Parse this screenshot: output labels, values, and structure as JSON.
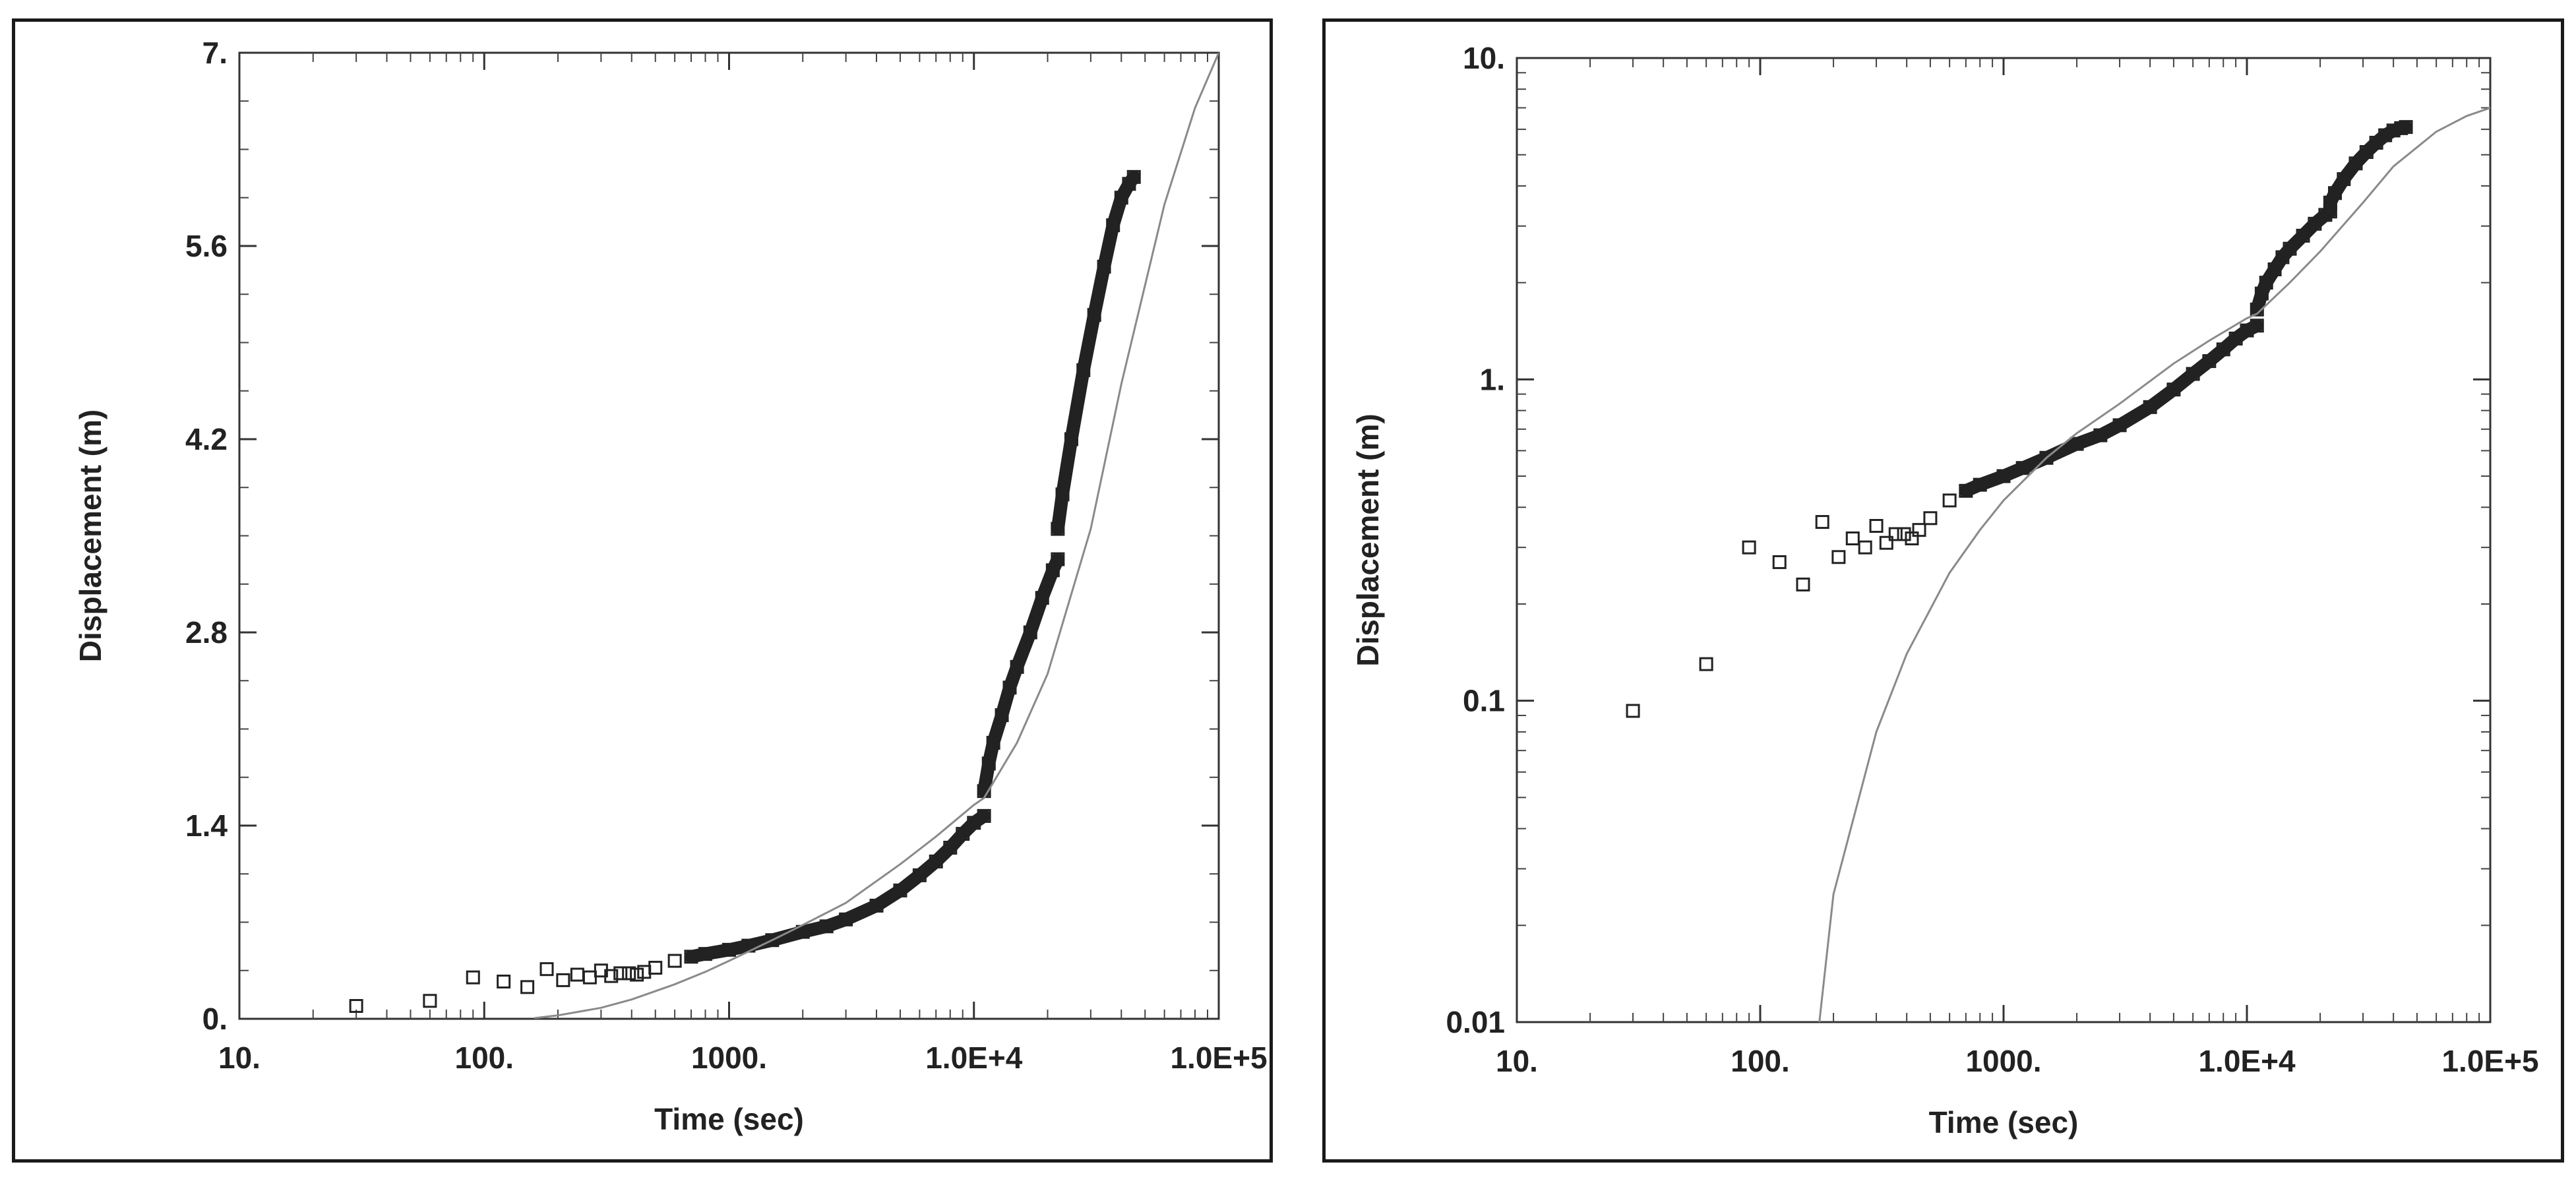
{
  "chart_data": [
    {
      "type": "scatter",
      "xlabel": "Time (sec)",
      "ylabel": "Displacement (m)",
      "xscale": "log",
      "yscale": "linear",
      "xlim": [
        10,
        100000
      ],
      "ylim": [
        0,
        7
      ],
      "xticks": [
        10,
        100,
        1000,
        10000,
        100000
      ],
      "xtick_labels": [
        "10.",
        "100.",
        "1000.",
        "1.0E+4",
        "1.0E+5"
      ],
      "yticks": [
        0,
        1.4,
        2.8,
        4.2,
        5.6,
        7
      ],
      "ytick_labels": [
        "0.",
        "1.4",
        "2.8",
        "4.2",
        "5.6",
        "7."
      ],
      "grid": false,
      "marker_color": "#222222",
      "series": [
        {
          "style": "markers",
          "x": [
            30,
            60,
            90,
            120,
            150,
            180,
            210,
            240,
            270,
            300,
            330,
            360,
            390,
            420,
            450,
            500,
            600,
            700,
            800,
            1000,
            1200,
            1500,
            2000,
            2500,
            3000,
            4000,
            5000,
            6000,
            7000,
            8000,
            9000,
            10000,
            11000,
            11000,
            11500,
            12000,
            13000,
            14000,
            15000,
            17000,
            19000,
            21000,
            22000,
            22000,
            23000,
            25000,
            28000,
            31000,
            34000,
            37000,
            40000,
            43000,
            45000
          ],
          "y": [
            0.093,
            0.13,
            0.3,
            0.27,
            0.23,
            0.36,
            0.28,
            0.32,
            0.3,
            0.35,
            0.31,
            0.33,
            0.33,
            0.32,
            0.34,
            0.37,
            0.42,
            0.45,
            0.47,
            0.5,
            0.53,
            0.57,
            0.63,
            0.67,
            0.72,
            0.82,
            0.93,
            1.04,
            1.14,
            1.24,
            1.34,
            1.42,
            1.47,
            1.65,
            1.85,
            2.0,
            2.2,
            2.4,
            2.55,
            2.8,
            3.05,
            3.25,
            3.33,
            3.55,
            3.8,
            4.2,
            4.7,
            5.1,
            5.45,
            5.75,
            5.95,
            6.05,
            6.1
          ]
        },
        {
          "style": "line",
          "color": "#8a8a8a",
          "x": [
            160,
            200,
            300,
            400,
            600,
            800,
            1000,
            1500,
            2000,
            3000,
            5000,
            7000,
            10000,
            11000,
            15000,
            20000,
            30000,
            40000,
            60000,
            80000,
            100000
          ],
          "y": [
            0.005,
            0.025,
            0.08,
            0.14,
            0.25,
            0.34,
            0.42,
            0.57,
            0.68,
            0.84,
            1.12,
            1.32,
            1.55,
            1.6,
            2.0,
            2.5,
            3.55,
            4.6,
            5.9,
            6.6,
            7.0
          ]
        }
      ]
    },
    {
      "type": "scatter",
      "xlabel": "Time (sec)",
      "ylabel": "Displacement (m)",
      "xscale": "log",
      "yscale": "log",
      "xlim": [
        10,
        100000
      ],
      "ylim": [
        0.01,
        10
      ],
      "xticks": [
        10,
        100,
        1000,
        10000,
        100000
      ],
      "xtick_labels": [
        "10.",
        "100.",
        "1000.",
        "1.0E+4",
        "1.0E+5"
      ],
      "yticks": [
        0.01,
        0.1,
        1,
        10
      ],
      "ytick_labels": [
        "0.01",
        "0.1",
        "1.",
        "10."
      ],
      "grid": false,
      "marker_color": "#222222",
      "series": [
        {
          "style": "markers",
          "x": [
            30,
            60,
            90,
            120,
            150,
            180,
            210,
            240,
            270,
            300,
            330,
            360,
            390,
            420,
            450,
            500,
            600,
            700,
            800,
            1000,
            1200,
            1500,
            2000,
            2500,
            3000,
            4000,
            5000,
            6000,
            7000,
            8000,
            9000,
            10000,
            11000,
            11000,
            11500,
            12000,
            13000,
            14000,
            15000,
            17000,
            19000,
            21000,
            22000,
            22000,
            23000,
            25000,
            28000,
            31000,
            34000,
            37000,
            40000,
            43000,
            45000
          ],
          "y": [
            0.093,
            0.13,
            0.3,
            0.27,
            0.23,
            0.36,
            0.28,
            0.32,
            0.3,
            0.35,
            0.31,
            0.33,
            0.33,
            0.32,
            0.34,
            0.37,
            0.42,
            0.45,
            0.47,
            0.5,
            0.53,
            0.57,
            0.63,
            0.67,
            0.72,
            0.82,
            0.93,
            1.04,
            1.14,
            1.24,
            1.34,
            1.42,
            1.47,
            1.65,
            1.85,
            2.0,
            2.2,
            2.4,
            2.55,
            2.8,
            3.05,
            3.25,
            3.33,
            3.55,
            3.8,
            4.2,
            4.7,
            5.1,
            5.45,
            5.75,
            5.95,
            6.05,
            6.1
          ]
        },
        {
          "style": "line",
          "color": "#8a8a8a",
          "x": [
            175,
            200,
            300,
            400,
            600,
            800,
            1000,
            1500,
            2000,
            3000,
            5000,
            7000,
            10000,
            11000,
            15000,
            20000,
            30000,
            40000,
            60000,
            80000,
            100000
          ],
          "y": [
            0.01,
            0.025,
            0.08,
            0.14,
            0.25,
            0.34,
            0.42,
            0.57,
            0.68,
            0.84,
            1.12,
            1.32,
            1.55,
            1.6,
            2.0,
            2.5,
            3.55,
            4.6,
            5.9,
            6.6,
            7.0
          ]
        }
      ]
    }
  ]
}
